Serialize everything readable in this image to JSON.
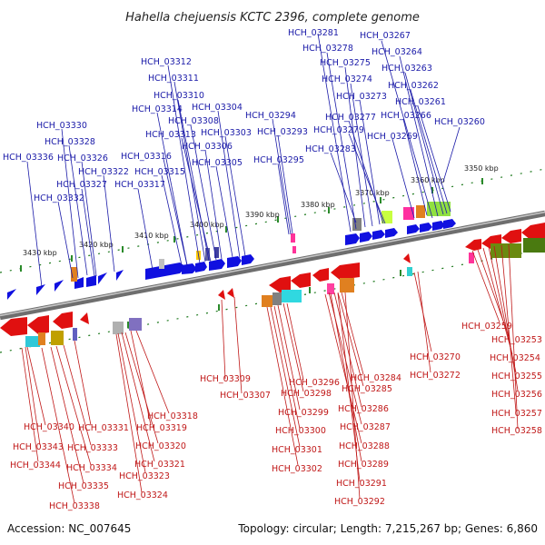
{
  "title": "Hahella chejuensis KCTC 2396, complete genome",
  "footer": {
    "accession": "Accession: NC_007645",
    "topology": "Topology: circular; Length: 7,215,267 bp; Genes: 6,860"
  },
  "colors": {
    "top_labels": "#1a1aa8",
    "bottom_labels": "#c01818",
    "forward_genes": "#1010e0",
    "reverse_genes": "#e01010",
    "backbone": "#8a8a8a",
    "ticks": "#2a8a2a"
  },
  "kbp_ticks": [
    "3350 kbp",
    "3360 kbp",
    "3370 kbp",
    "3380 kbp",
    "3390 kbp",
    "3400 kbp",
    "3410 kbp",
    "3420 kbp",
    "3430 kbp"
  ],
  "top_genes": [
    "HCH_03281",
    "HCH_03267",
    "HCH_03278",
    "HCH_03264",
    "HCH_03312",
    "HCH_03275",
    "HCH_03263",
    "HCH_03311",
    "HCH_03274",
    "HCH_03262",
    "HCH_03310",
    "HCH_03273",
    "HCH_03261",
    "HCH_03314",
    "HCH_03304",
    "HCH_03266",
    "HCH_03308",
    "HCH_03294",
    "HCH_03330",
    "HCH_03313",
    "HCH_03277",
    "HCH_03303",
    "HCH_03260",
    "HCH_03293",
    "HCH_03279",
    "HCH_03328",
    "HCH_03269",
    "HCH_03306",
    "HCH_03283",
    "HCH_03316",
    "HCH_03336",
    "HCH_03326",
    "HCH_03305",
    "HCH_03295",
    "HCH_03322",
    "HCH_03315",
    "HCH_03327",
    "HCH_03317",
    "HCH_03332"
  ],
  "bottom_genes": [
    "HCH_03259",
    "HCH_03253",
    "HCH_03270",
    "HCH_03254",
    "HCH_03284",
    "HCH_03272",
    "HCH_03255",
    "HCH_03296",
    "HCH_03309",
    "HCH_03285",
    "HCH_03298",
    "HCH_03256",
    "HCH_03307",
    "HCH_03318",
    "HCH_03286",
    "HCH_03257",
    "HCH_03299",
    "HCH_03287",
    "HCH_03258",
    "HCH_03340",
    "HCH_03331",
    "HCH_03319",
    "HCH_03300",
    "HCH_03288",
    "HCH_03343",
    "HCH_03333",
    "HCH_03320",
    "HCH_03301",
    "HCH_03289",
    "HCH_03344",
    "HCH_03334",
    "HCH_03321",
    "HCH_03302",
    "HCH_03323",
    "HCH_03291",
    "HCH_03335",
    "HCH_03324",
    "HCH_03292",
    "HCH_03338"
  ]
}
